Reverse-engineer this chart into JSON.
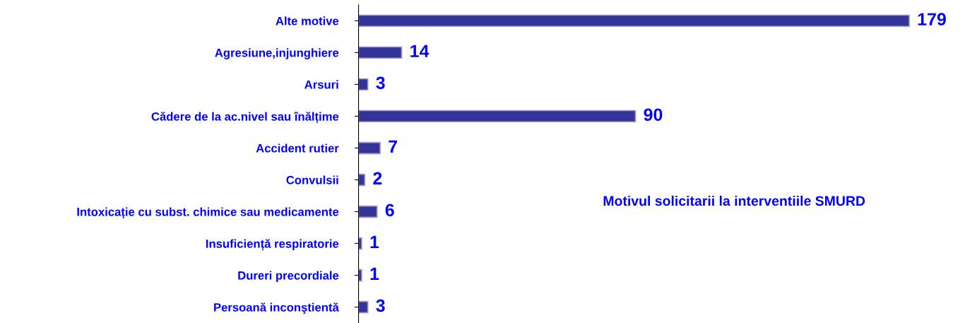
{
  "chart_data": {
    "type": "bar",
    "orientation": "horizontal",
    "title": "Motivul solicitarii la interventiile SMURD",
    "categories": [
      "Alte motive",
      "Agresiune,injunghiere",
      "Arsuri",
      "Cădere de la ac.nivel sau înălțime",
      "Accident rutier",
      "Convulsii",
      "Intoxicație cu subst. chimice sau medicamente",
      "Insuficiență respiratorie",
      "Dureri precordiale",
      "Persoană inconştientă"
    ],
    "values": [
      179,
      14,
      3,
      90,
      7,
      2,
      6,
      1,
      1,
      3
    ],
    "color": "#333399",
    "data_labels": true,
    "grid": false,
    "legend": false
  }
}
